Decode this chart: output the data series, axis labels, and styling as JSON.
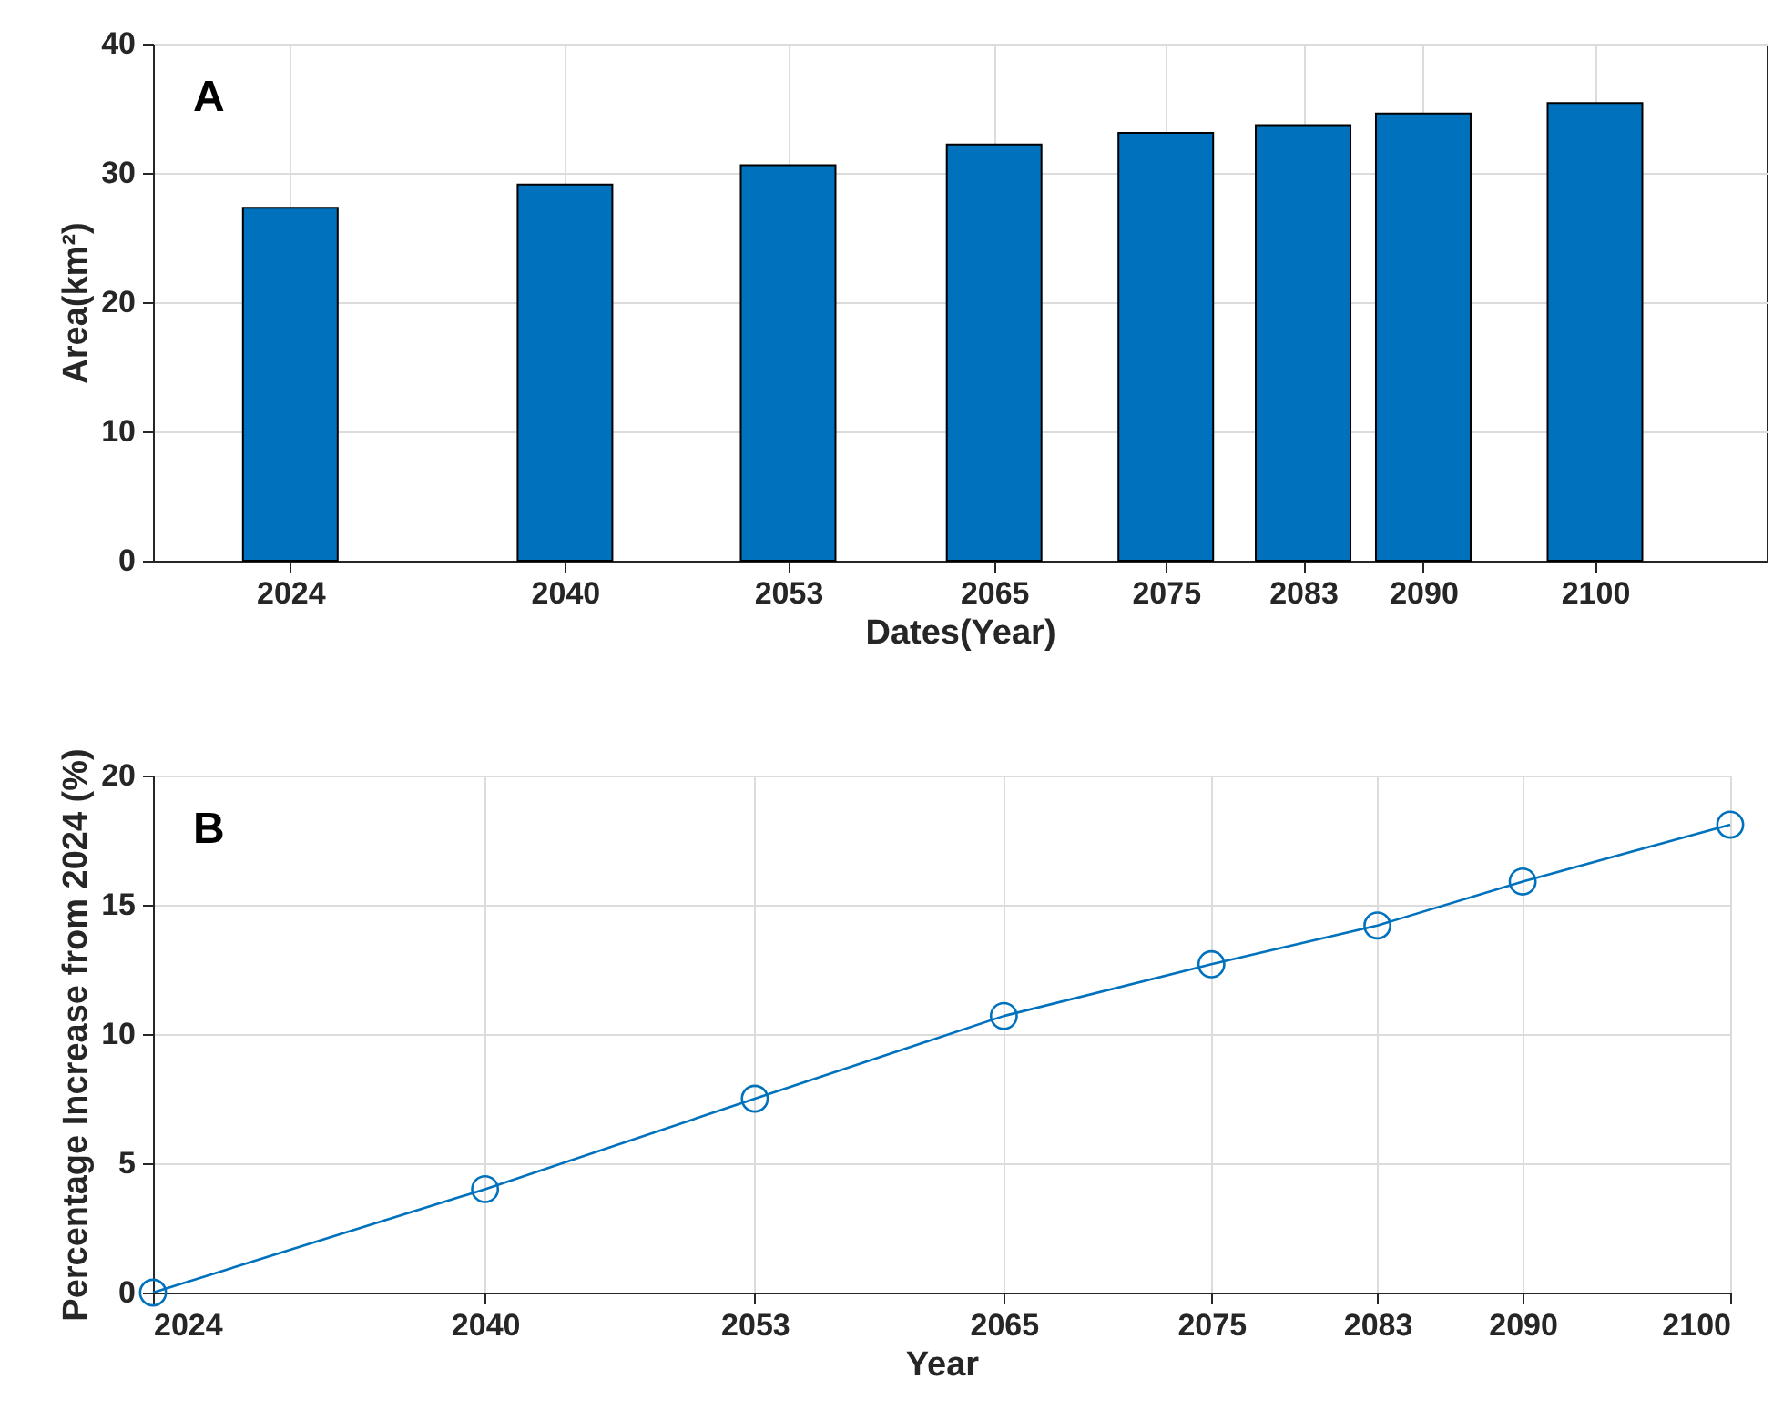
{
  "chart_data": [
    {
      "type": "bar",
      "x": [
        2024,
        2040,
        2053,
        2065,
        2075,
        2083,
        2090,
        2100
      ],
      "xlabel": "Dates(Year)",
      "ylabel": "Area(km²)",
      "annotations": [
        "A"
      ],
      "series": [
        {
          "color": "#0072bd",
          "values": [
            27.3,
            29.1,
            30.6,
            32.2,
            33.1,
            33.7,
            34.6,
            35.4
          ]
        }
      ],
      "xlim": [
        2016,
        2110
      ],
      "xticks": [
        2024,
        2040,
        2053,
        2065,
        2075,
        2083,
        2090,
        2100
      ],
      "ylim": [
        0,
        40
      ],
      "yticks": [
        0,
        10,
        20,
        30,
        40
      ],
      "grid": true
    },
    {
      "type": "line",
      "x": [
        2024,
        2040,
        2053,
        2065,
        2075,
        2083,
        2090,
        2100
      ],
      "xlabel": "Year",
      "ylabel": "Percentage Increase from 2024 (%)",
      "annotations": [
        "B"
      ],
      "series": [
        {
          "color": "#0072bd",
          "values": [
            0,
            4.0,
            7.5,
            10.7,
            12.7,
            14.2,
            15.9,
            18.1
          ]
        }
      ],
      "xlim": [
        2024,
        2100
      ],
      "xticks": [
        2024,
        2040,
        2053,
        2065,
        2075,
        2083,
        2090,
        2100
      ],
      "ylim": [
        0,
        20
      ],
      "yticks": [
        0,
        5,
        10,
        15,
        20
      ],
      "grid": true,
      "marker": "circle",
      "line_style": "solid"
    }
  ]
}
